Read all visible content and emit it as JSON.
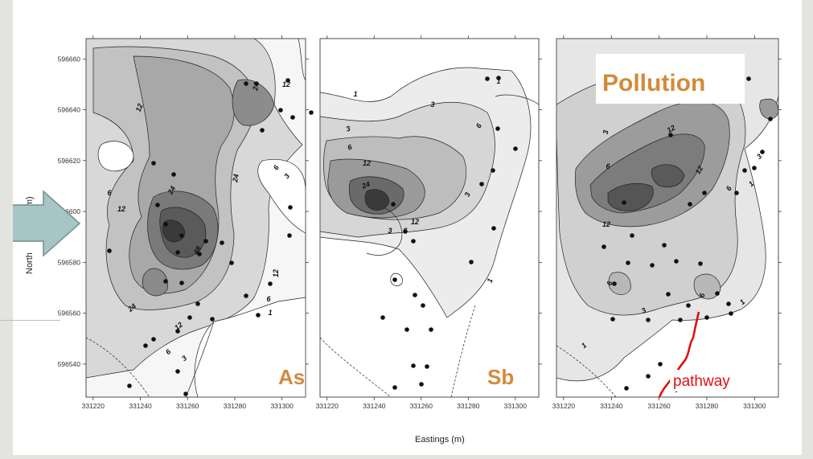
{
  "axis": {
    "xlabel": "Eastings (m)",
    "ylabel": "North",
    "ylabel_suffix": "g (m)",
    "xticks": [
      "331220",
      "331240",
      "331260",
      "331280",
      "331300"
    ],
    "yticks": [
      "596660",
      "596640",
      "596620",
      "596600",
      "596580",
      "596560",
      "596540"
    ]
  },
  "panels": [
    {
      "element": "As",
      "color": "#d48a3a"
    },
    {
      "element": "Sb",
      "color": "#d48a3a"
    },
    {
      "element": "",
      "color": "#d48a3a"
    }
  ],
  "overlay": {
    "pollution_label": "Pollution",
    "pathway_label": "pathway",
    "pathway_color": "#e01010"
  },
  "chart_data": [
    {
      "type": "contour",
      "title": "As",
      "xlabel": "Eastings (m)",
      "ylabel": "Northing (m)",
      "xlim": [
        331217,
        331310
      ],
      "ylim": [
        596527,
        596668
      ],
      "contour_levels": [
        3,
        6,
        12,
        24,
        48
      ],
      "hotspot": {
        "x": 331252,
        "y": 596593
      }
    },
    {
      "type": "contour",
      "title": "Sb",
      "xlabel": "Eastings (m)",
      "ylabel": "Northing (m)",
      "xlim": [
        331217,
        331310
      ],
      "ylim": [
        596527,
        596668
      ],
      "contour_levels": [
        1,
        3,
        6,
        12,
        24
      ],
      "hotspot": {
        "x": 331242,
        "y": 596605
      }
    },
    {
      "type": "contour",
      "title": "",
      "xlabel": "Eastings (m)",
      "ylabel": "Northing (m)",
      "xlim": [
        331217,
        331310
      ],
      "ylim": [
        596527,
        596668
      ],
      "contour_levels": [
        1,
        3,
        6,
        12
      ],
      "hotspot": {
        "x": 331245,
        "y": 596605
      }
    }
  ]
}
